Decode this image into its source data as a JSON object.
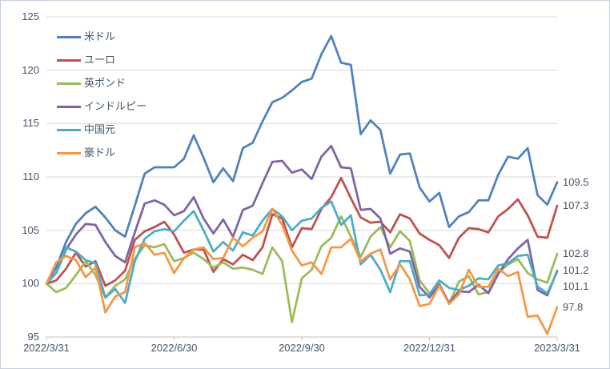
{
  "chart_data": {
    "type": "line",
    "title": "",
    "xlabel": "",
    "ylabel": "",
    "x_unit": "weekly samples from 2022/3/31 to 2023/3/31",
    "x_tick_labels": [
      "2022/3/31",
      "2022/6/30",
      "2022/9/30",
      "2022/12/31",
      "2023/3/31"
    ],
    "x_tick_weeks": [
      0,
      13,
      26,
      39,
      52
    ],
    "x_range_weeks": [
      0,
      52
    ],
    "y_ticks": [
      95,
      100,
      105,
      110,
      115,
      120,
      125
    ],
    "ylim": [
      95,
      125
    ],
    "grid": "horizontal",
    "legend_position": "top-left-vertical",
    "series": [
      {
        "id": "usd",
        "label": "米ドル",
        "color": "#4F81BD",
        "end_label": "109.5",
        "values": [
          100,
          101.5,
          103.9,
          105.6,
          106.6,
          107.2,
          106.2,
          105,
          104.4,
          107.3,
          110.3,
          110.9,
          110.9,
          110.9,
          111.7,
          113.9,
          111.8,
          109.5,
          110.8,
          109.6,
          112.7,
          113.2,
          115.2,
          117,
          117.4,
          118.1,
          118.9,
          119.2,
          121.5,
          123.2,
          120.7,
          120.5,
          114,
          115.3,
          114.4,
          110.3,
          112.1,
          112.2,
          109,
          107.7,
          108.5,
          105.3,
          106.3,
          106.7,
          107.8,
          107.8,
          110.2,
          111.9,
          111.7,
          112.7,
          108.3,
          107.4,
          109.5
        ]
      },
      {
        "id": "eur",
        "label": "ユーロ",
        "color": "#C0504D",
        "end_label": "107.3",
        "values": [
          100,
          100.3,
          101.4,
          102.9,
          101.6,
          102.1,
          99.8,
          100.3,
          101.2,
          104.1,
          104.9,
          105.3,
          105.8,
          104.6,
          102.9,
          103.2,
          103.2,
          101.1,
          102.3,
          101.8,
          102.7,
          102.2,
          103.4,
          106.5,
          106.1,
          103.4,
          105.2,
          105.1,
          107,
          108.1,
          109.9,
          108,
          106.2,
          105.7,
          105.8,
          104.8,
          106.5,
          106.1,
          104.7,
          104.1,
          103.6,
          102.4,
          104.3,
          105.2,
          105.1,
          104.8,
          106.3,
          107,
          107.9,
          106.4,
          104.4,
          104.3,
          107.3
        ]
      },
      {
        "id": "gbp",
        "label": "英ポンド",
        "color": "#9BBB59",
        "end_label": "102.8",
        "values": [
          100,
          99.2,
          99.6,
          100.8,
          102.1,
          100.8,
          98.7,
          99.8,
          100.4,
          102.3,
          103.6,
          103.4,
          103.7,
          102.1,
          102.4,
          102.9,
          102.3,
          101.5,
          102,
          101.4,
          101.5,
          101.3,
          100.9,
          103.4,
          102.1,
          96.4,
          100.5,
          101.3,
          103.5,
          104.3,
          106.3,
          104.4,
          102.5,
          104.4,
          105.3,
          103.4,
          104.9,
          104,
          100.3,
          99.1,
          100,
          98.1,
          100.2,
          100.7,
          99,
          99.2,
          101,
          101.8,
          102.3,
          101,
          100.4,
          100.1,
          102.8
        ]
      },
      {
        "id": "inr",
        "label": "インドルピー",
        "color": "#8064A2",
        "end_label": "101.2",
        "values": [
          100,
          101,
          103.2,
          104.6,
          105.6,
          105.5,
          103.9,
          102.6,
          102,
          104.8,
          107.5,
          107.8,
          107.4,
          106.4,
          106.8,
          108.1,
          106.1,
          104.7,
          106,
          104.4,
          106.9,
          107.3,
          109.4,
          111.4,
          111.5,
          110.4,
          110.7,
          109.8,
          111.9,
          112.9,
          110.9,
          110.8,
          106.9,
          107,
          106.1,
          102.8,
          103.3,
          103,
          99.7,
          98.7,
          99.9,
          98.2,
          99.3,
          99.2,
          99.9,
          99.1,
          100.9,
          102.3,
          103.3,
          104.1,
          99.4,
          98.9,
          101.2
        ]
      },
      {
        "id": "cny",
        "label": "中国元",
        "color": "#4BACC6",
        "end_label": "101.1",
        "values": [
          100,
          101,
          103.4,
          103,
          102.2,
          101.9,
          98.7,
          99.5,
          98.2,
          102.1,
          104.2,
          104.9,
          105.1,
          104.9,
          105.9,
          106.8,
          105,
          103,
          103.9,
          103.1,
          104.8,
          104.5,
          105.9,
          107,
          106.3,
          105,
          105.9,
          106.1,
          107.1,
          107.7,
          105.5,
          106.4,
          101.8,
          102.7,
          101.3,
          99.2,
          102.1,
          102.1,
          98.9,
          99,
          100.3,
          99.6,
          99.4,
          99.8,
          100.5,
          100.4,
          101.7,
          101.9,
          102.6,
          102.7,
          99.7,
          99.1,
          101.1
        ]
      },
      {
        "id": "aud",
        "label": "豪ドル",
        "color": "#F79646",
        "end_label": "97.8",
        "values": [
          100,
          102,
          102.6,
          102.2,
          100.6,
          101.5,
          97.3,
          98.8,
          99.2,
          103.4,
          103.8,
          102.7,
          102.9,
          101,
          102.4,
          103.2,
          103.4,
          102.3,
          102.4,
          104.3,
          103.5,
          104.3,
          104.9,
          107,
          105.5,
          103.1,
          101.7,
          102,
          100.9,
          103.4,
          103.4,
          104.2,
          102.1,
          102.8,
          103.2,
          100.4,
          101.8,
          100.4,
          97.9,
          98.1,
          99.8,
          98.1,
          99,
          101.3,
          99.7,
          99.7,
          101.4,
          100.7,
          101.1,
          96.9,
          97,
          95.3,
          97.8
        ]
      }
    ]
  },
  "colors": {
    "axis_text": "#44546a",
    "gridline": "#d9d9d9",
    "axis_line": "#bfbfbf",
    "border": "#c5d0de",
    "background": "#ffffff"
  }
}
